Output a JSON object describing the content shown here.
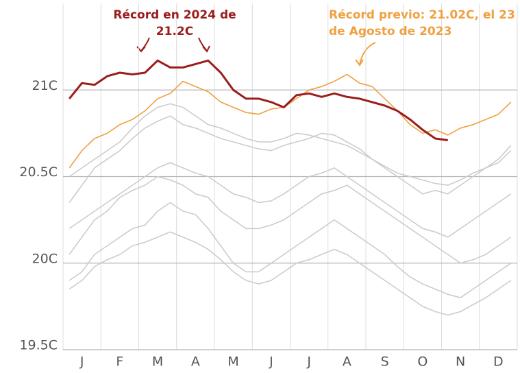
{
  "chart_data": {
    "type": "line",
    "categories": [
      "J",
      "F",
      "M",
      "A",
      "M",
      "J",
      "J",
      "A",
      "S",
      "O",
      "N",
      "D"
    ],
    "ylim": [
      19.5,
      21.5
    ],
    "yticks": [
      {
        "value": 19.5,
        "label": "19.5C"
      },
      {
        "value": 20,
        "label": "20C"
      },
      {
        "value": 20.5,
        "label": "20.5C"
      },
      {
        "value": 21,
        "label": "21C"
      }
    ],
    "grid": true,
    "annotations": [
      {
        "lines": [
          "Récord en 2024 de",
          "21.2C"
        ],
        "color": "#9b1c1c"
      },
      {
        "lines": [
          "Récord previo: 21.02C, el 23",
          "de Agosto de 2023"
        ],
        "color": "#f0a040"
      }
    ],
    "series": [
      {
        "color": "#cccccc",
        "values": [
          [
            20.05,
            20.15,
            20.25
          ],
          [
            20.3,
            20.38,
            20.42
          ],
          [
            20.45,
            20.5,
            20.48
          ],
          [
            20.45,
            20.4,
            20.38
          ],
          [
            20.3,
            20.25,
            20.2
          ],
          [
            20.2,
            20.22,
            20.25
          ],
          [
            20.3,
            20.35,
            20.4
          ],
          [
            20.42,
            20.45,
            20.4
          ],
          [
            20.35,
            20.3,
            20.25
          ],
          [
            20.2,
            20.15,
            20.1
          ],
          [
            20.05,
            20.0,
            20.02
          ],
          [
            20.05,
            20.1,
            20.15
          ]
        ]
      },
      {
        "color": "#cccccc",
        "values": [
          [
            19.9,
            19.95,
            20.05
          ],
          [
            20.1,
            20.15,
            20.2
          ],
          [
            20.22,
            20.3,
            20.35
          ],
          [
            20.3,
            20.28,
            20.2
          ],
          [
            20.1,
            20.0,
            19.95
          ],
          [
            19.95,
            20.0,
            20.05
          ],
          [
            20.1,
            20.15,
            20.2
          ],
          [
            20.25,
            20.2,
            20.15
          ],
          [
            20.1,
            20.05,
            19.98
          ],
          [
            19.92,
            19.88,
            19.85
          ],
          [
            19.82,
            19.8,
            19.85
          ],
          [
            19.9,
            19.95,
            20.0
          ]
        ]
      },
      {
        "color": "#cccccc",
        "values": [
          [
            20.35,
            20.45,
            20.55
          ],
          [
            20.6,
            20.65,
            20.72
          ],
          [
            20.78,
            20.82,
            20.85
          ],
          [
            20.8,
            20.78,
            20.75
          ],
          [
            20.72,
            20.7,
            20.68
          ],
          [
            20.66,
            20.65,
            20.68
          ],
          [
            20.7,
            20.72,
            20.75
          ],
          [
            20.74,
            20.7,
            20.66
          ],
          [
            20.6,
            20.55,
            20.5
          ],
          [
            20.45,
            20.4,
            20.42
          ],
          [
            20.4,
            20.45,
            20.5
          ],
          [
            20.55,
            20.6,
            20.68
          ]
        ]
      },
      {
        "color": "#cccccc",
        "values": [
          [
            20.2,
            20.25,
            20.3
          ],
          [
            20.35,
            20.4,
            20.45
          ],
          [
            20.5,
            20.55,
            20.58
          ],
          [
            20.55,
            20.52,
            20.5
          ],
          [
            20.45,
            20.4,
            20.38
          ],
          [
            20.35,
            20.36,
            20.4
          ],
          [
            20.45,
            20.5,
            20.52
          ],
          [
            20.55,
            20.5,
            20.45
          ],
          [
            20.4,
            20.35,
            20.3
          ],
          [
            20.25,
            20.2,
            20.18
          ],
          [
            20.15,
            20.2,
            20.25
          ],
          [
            20.3,
            20.35,
            20.4
          ]
        ]
      },
      {
        "color": "#cccccc",
        "values": [
          [
            19.85,
            19.9,
            19.98
          ],
          [
            20.02,
            20.05,
            20.1
          ],
          [
            20.12,
            20.15,
            20.18
          ],
          [
            20.15,
            20.12,
            20.08
          ],
          [
            20.02,
            19.95,
            19.9
          ],
          [
            19.88,
            19.9,
            19.95
          ],
          [
            20.0,
            20.02,
            20.05
          ],
          [
            20.08,
            20.05,
            20.0
          ],
          [
            19.95,
            19.9,
            19.85
          ],
          [
            19.8,
            19.75,
            19.72
          ],
          [
            19.7,
            19.72,
            19.76
          ],
          [
            19.8,
            19.85,
            19.9
          ]
        ]
      },
      {
        "color": "#cccccc",
        "values": [
          [
            20.5,
            20.55,
            20.6
          ],
          [
            20.65,
            20.7,
            20.78
          ],
          [
            20.85,
            20.9,
            20.92
          ],
          [
            20.9,
            20.85,
            20.8
          ],
          [
            20.78,
            20.75,
            20.72
          ],
          [
            20.7,
            20.7,
            20.72
          ],
          [
            20.75,
            20.74,
            20.72
          ],
          [
            20.7,
            20.68,
            20.64
          ],
          [
            20.6,
            20.56,
            20.52
          ],
          [
            20.5,
            20.48,
            20.46
          ],
          [
            20.45,
            20.48,
            20.52
          ],
          [
            20.55,
            20.58,
            20.65
          ]
        ]
      },
      {
        "name": "2023",
        "color": "#f0a040",
        "values": [
          [
            20.55,
            20.65,
            20.72
          ],
          [
            20.75,
            20.8,
            20.83
          ],
          [
            20.88,
            20.95,
            20.98
          ],
          [
            21.05,
            21.02,
            20.99
          ],
          [
            20.93,
            20.9,
            20.87
          ],
          [
            20.86,
            20.89,
            20.9
          ],
          [
            20.95,
            21.0,
            21.02
          ],
          [
            21.05,
            21.09,
            21.04
          ],
          [
            21.02,
            20.95,
            20.88
          ],
          [
            20.8,
            20.75,
            20.77
          ],
          [
            20.74,
            20.78,
            20.8
          ],
          [
            20.83,
            20.86,
            20.93
          ]
        ]
      },
      {
        "name": "2024",
        "color": "#9b1c1c",
        "width": 3,
        "values": [
          [
            20.95,
            21.04,
            21.03
          ],
          [
            21.08,
            21.1,
            21.09
          ],
          [
            21.1,
            21.17,
            21.13
          ],
          [
            21.13,
            21.15,
            21.17
          ],
          [
            21.1,
            21.0,
            20.95
          ],
          [
            20.95,
            20.93,
            20.9
          ],
          [
            20.97,
            20.98,
            20.96
          ],
          [
            20.98,
            20.96,
            20.95
          ],
          [
            20.93,
            20.91,
            20.88
          ],
          [
            20.83,
            20.77,
            20.72
          ],
          [
            20.71,
            null,
            null
          ],
          [
            null,
            null,
            null
          ]
        ]
      }
    ]
  }
}
